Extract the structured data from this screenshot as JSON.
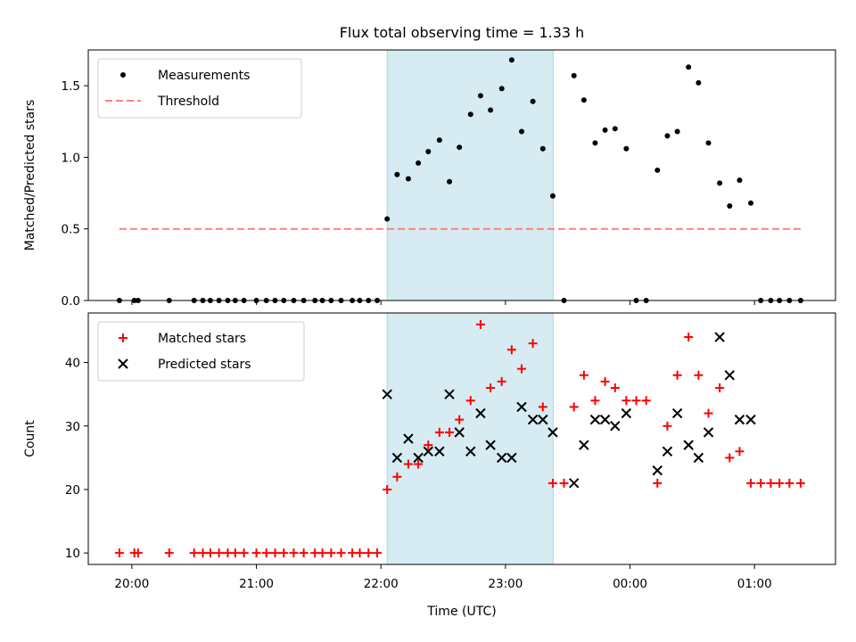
{
  "title": "Flux total observing time = 1.33 h",
  "colors": {
    "shade": "#add8e6",
    "threshold": "#ff7f7f",
    "measurements": "#000000",
    "matched": "#ff0000",
    "predicted": "#000000"
  },
  "chart_data": [
    {
      "type": "scatter",
      "panel": "top",
      "ylabel": "Matched/Predicted stars",
      "xlim_hours": [
        19.65,
        25.65
      ],
      "ylim": [
        0,
        1.75
      ],
      "yticks": [
        0.0,
        0.5,
        1.0,
        1.5
      ],
      "ytick_labels": [
        "0.0",
        "0.5",
        "1.0",
        "1.5"
      ],
      "legend_position": "upper left",
      "shaded_span_hours": [
        22.05,
        23.383
      ],
      "threshold": {
        "name": "Threshold",
        "y": 0.5,
        "x_hours": [
          19.9,
          25.4
        ],
        "style": "dashed"
      },
      "series": [
        {
          "name": "Measurements",
          "marker": "dot",
          "x_hours": [
            19.9,
            20.02,
            20.05,
            20.3,
            20.5,
            20.57,
            20.63,
            20.7,
            20.77,
            20.83,
            20.9,
            21.0,
            21.08,
            21.15,
            21.22,
            21.3,
            21.38,
            21.47,
            21.53,
            21.6,
            21.68,
            21.77,
            21.83,
            21.9,
            21.97,
            22.05,
            22.13,
            22.22,
            22.3,
            22.38,
            22.47,
            22.55,
            22.63,
            22.72,
            22.8,
            22.88,
            22.97,
            23.05,
            23.13,
            23.22,
            23.3,
            23.38,
            23.47,
            23.55,
            23.63,
            23.72,
            23.8,
            23.88,
            23.97,
            24.05,
            24.13,
            24.22,
            24.3,
            24.38,
            24.47,
            24.55,
            24.63,
            24.72,
            24.8,
            24.88,
            24.97,
            25.05,
            25.13,
            25.2,
            25.28,
            25.37
          ],
          "y": [
            0,
            0,
            0,
            0,
            0,
            0,
            0,
            0,
            0,
            0,
            0,
            0,
            0,
            0,
            0,
            0,
            0,
            0,
            0,
            0,
            0,
            0,
            0,
            0,
            0,
            0.57,
            0.88,
            0.85,
            0.96,
            1.04,
            1.12,
            0.83,
            1.07,
            1.3,
            1.43,
            1.33,
            1.48,
            1.68,
            1.18,
            1.39,
            1.06,
            0.73,
            0,
            1.57,
            1.4,
            1.1,
            1.19,
            1.2,
            1.06,
            0,
            0,
            0.91,
            1.15,
            1.18,
            1.63,
            1.52,
            1.1,
            0.82,
            0.66,
            0.84,
            0.68,
            0,
            0,
            0,
            0,
            0
          ]
        }
      ]
    },
    {
      "type": "scatter",
      "panel": "bottom",
      "xlabel": "Time (UTC)",
      "ylabel": "Count",
      "xlim_hours": [
        19.65,
        25.65
      ],
      "xticks_hours": [
        20,
        21,
        22,
        23,
        24,
        25
      ],
      "xtick_labels": [
        "20:00",
        "21:00",
        "22:00",
        "23:00",
        "00:00",
        "01:00"
      ],
      "ylim": [
        8.2,
        47.8
      ],
      "yticks": [
        10,
        20,
        30,
        40
      ],
      "ytick_labels": [
        "10",
        "20",
        "30",
        "40"
      ],
      "legend_position": "upper left",
      "shaded_span_hours": [
        22.05,
        23.383
      ],
      "series": [
        {
          "name": "Matched stars",
          "marker": "plus",
          "x_hours": [
            19.9,
            20.02,
            20.05,
            20.3,
            20.5,
            20.57,
            20.63,
            20.7,
            20.77,
            20.83,
            20.9,
            21.0,
            21.08,
            21.15,
            21.22,
            21.3,
            21.38,
            21.47,
            21.53,
            21.6,
            21.68,
            21.77,
            21.83,
            21.9,
            21.97,
            22.05,
            22.13,
            22.22,
            22.3,
            22.38,
            22.47,
            22.55,
            22.63,
            22.72,
            22.8,
            22.88,
            22.97,
            23.05,
            23.13,
            23.22,
            23.3,
            23.38,
            23.47,
            23.55,
            23.63,
            23.72,
            23.8,
            23.88,
            23.97,
            24.05,
            24.13,
            24.22,
            24.3,
            24.38,
            24.47,
            24.55,
            24.63,
            24.72,
            24.8,
            24.88,
            24.97,
            25.05,
            25.13,
            25.2,
            25.28,
            25.37
          ],
          "y": [
            10,
            10,
            10,
            10,
            10,
            10,
            10,
            10,
            10,
            10,
            10,
            10,
            10,
            10,
            10,
            10,
            10,
            10,
            10,
            10,
            10,
            10,
            10,
            10,
            10,
            20,
            22,
            24,
            24,
            27,
            29,
            29,
            31,
            34,
            46,
            36,
            37,
            42,
            39,
            43,
            33,
            21,
            21,
            33,
            38,
            34,
            37,
            36,
            34,
            34,
            34,
            21,
            30,
            38,
            44,
            38,
            32,
            36,
            25,
            26,
            21,
            21,
            21,
            21,
            21,
            21
          ]
        },
        {
          "name": "Predicted stars",
          "marker": "x",
          "x_hours": [
            22.05,
            22.13,
            22.22,
            22.3,
            22.38,
            22.47,
            22.55,
            22.63,
            22.72,
            22.8,
            22.88,
            22.97,
            23.05,
            23.13,
            23.22,
            23.3,
            23.38,
            23.55,
            23.63,
            23.72,
            23.8,
            23.88,
            23.97,
            24.22,
            24.3,
            24.38,
            24.47,
            24.55,
            24.63,
            24.72,
            24.8,
            24.88,
            24.97
          ],
          "y": [
            35,
            25,
            28,
            25,
            26,
            26,
            35,
            29,
            26,
            32,
            27,
            25,
            25,
            33,
            31,
            31,
            29,
            21,
            27,
            31,
            31,
            30,
            32,
            23,
            26,
            32,
            27,
            25,
            29,
            44,
            38,
            31,
            31
          ]
        }
      ]
    }
  ]
}
